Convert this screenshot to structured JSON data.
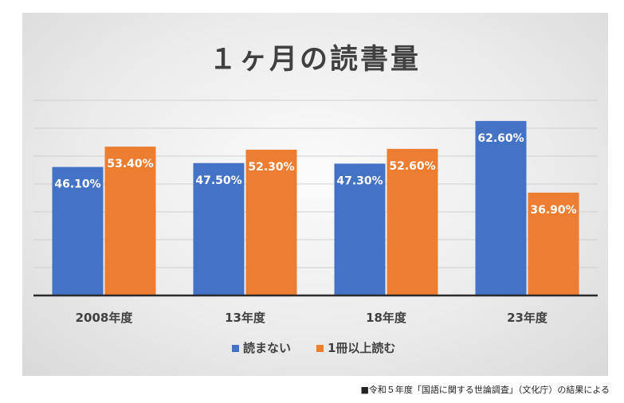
{
  "chart_data": {
    "type": "bar",
    "title": "１ヶ月の読書量",
    "categories": [
      "2008年度",
      "13年度",
      "18年度",
      "23年度"
    ],
    "series": [
      {
        "name": "読まない",
        "color": "#4472c4",
        "values": [
          46.1,
          47.5,
          47.3,
          62.6
        ],
        "labels": [
          "46.10%",
          "47.50%",
          "47.30%",
          "62.60%"
        ]
      },
      {
        "name": "1冊以上読む",
        "color": "#ed7d31",
        "values": [
          53.4,
          52.3,
          52.6,
          36.9
        ],
        "labels": [
          "53.40%",
          "52.30%",
          "52.60%",
          "36.90%"
        ]
      }
    ],
    "ylim": [
      0,
      70
    ],
    "grid": true,
    "legend": "bottom"
  },
  "source_note": "■令和５年度「国語に関する世論調査」（文化庁）の結果による"
}
